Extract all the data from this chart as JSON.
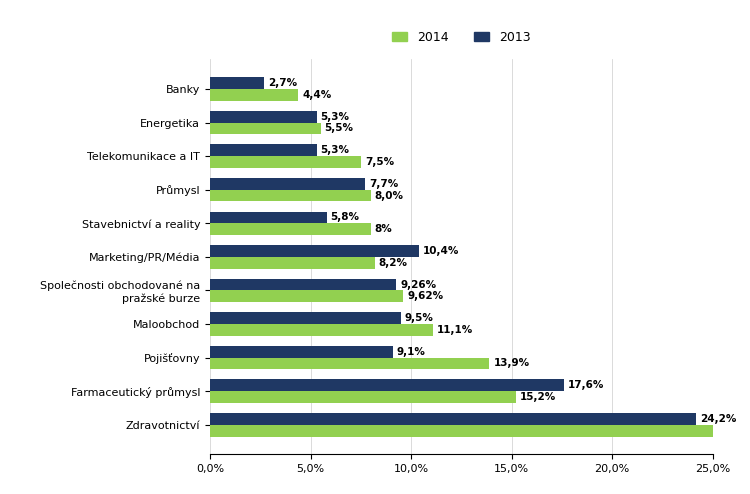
{
  "categories": [
    "Banky",
    "Energetika",
    "Telekomunikace a IT",
    "Průmysl",
    "Stavebnictví a reality",
    "Marketing/PR/Média",
    "Společnosti obchodované na\npražské burze",
    "Maloobchod",
    "Pojišťovny",
    "Farmaceutický průmysl",
    "Zdravotnictví"
  ],
  "values_2014": [
    4.4,
    5.5,
    7.5,
    8.0,
    8.0,
    8.2,
    9.62,
    11.1,
    13.9,
    15.2,
    25.3
  ],
  "values_2013": [
    2.7,
    5.3,
    5.3,
    7.7,
    5.8,
    10.4,
    9.26,
    9.5,
    9.1,
    17.6,
    24.2
  ],
  "labels_2014": [
    "4,4%",
    "5,5%",
    "7,5%",
    "8,0%",
    "8%",
    "8,2%",
    "9,62%",
    "11,1%",
    "13,9%",
    "15,2%",
    ""
  ],
  "labels_2013": [
    "2,7%",
    "5,3%",
    "5,3%",
    "7,7%",
    "5,8%",
    "10,4%",
    "9,26%",
    "9,5%",
    "9,1%",
    "17,6%",
    "24,2%"
  ],
  "color_2014": "#92d050",
  "color_2013": "#1f3864",
  "bar_height": 0.35,
  "xlim": [
    0,
    25
  ],
  "xticks": [
    0,
    5,
    10,
    15,
    20,
    25
  ],
  "xtick_labels": [
    "0,0%",
    "5,0%",
    "10,0%",
    "15,0%",
    "20,0%",
    "25,0%"
  ],
  "legend_2014": "2014",
  "legend_2013": "2013",
  "figsize": [
    7.5,
    4.94
  ],
  "dpi": 100,
  "label_fontsize": 7.5,
  "tick_fontsize": 8,
  "legend_fontsize": 9
}
